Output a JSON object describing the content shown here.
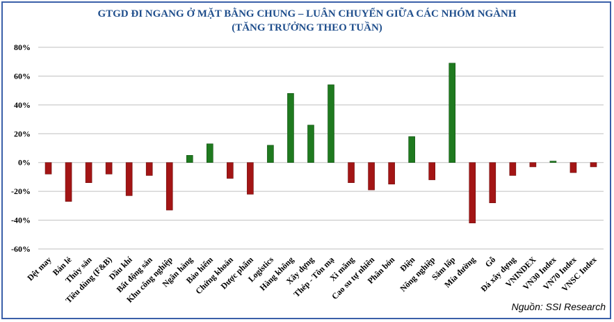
{
  "colors": {
    "positive": "#1f7a1f",
    "negative": "#a31515",
    "title": "#1f4e8c",
    "grid": "#bfbfbf"
  },
  "source": "Nguồn: SSI Research",
  "chart_data": {
    "type": "bar",
    "title": "GTGD ĐI NGANG Ở MẶT BẰNG CHUNG – LUÂN CHUYỂN GIỮA CÁC NHÓM NGÀNH",
    "subtitle": "(TĂNG TRƯỞNG THEO TUẦN)",
    "xlabel": "",
    "ylabel": "",
    "ylim": [
      -60,
      80
    ],
    "yticks": [
      80,
      60,
      40,
      20,
      0,
      -20,
      -40,
      -60
    ],
    "ytick_labels": [
      "80%",
      "60%",
      "40%",
      "20%",
      "0%",
      "-20%",
      "-40%",
      "-60%"
    ],
    "grid": true,
    "legend": "none",
    "categories": [
      "Dệt may",
      "Bán lẻ",
      "Thủy sản",
      "Tiêu dùng (F&B)",
      "Dầu khí",
      "Bất động sản",
      "Khu công nghiệp",
      "Ngân hàng",
      "Bảo hiểm",
      "Chứng khoán",
      "Dược phẩm",
      "Logistics",
      "Hàng không",
      "Xây dựng",
      "Thép - Tôn mạ",
      "Xi măng",
      "Cao su tự nhiên",
      "Phân bón",
      "Điện",
      "Nông nghiệp",
      "Săm lốp",
      "Mía đường",
      "Gỗ",
      "Đá xây dựng",
      "VNINDEX",
      "VN30 Index",
      "VN70 Index",
      "VNSC Index"
    ],
    "values": [
      -8,
      -27,
      -14,
      -8,
      -23,
      -9,
      -33,
      5,
      13,
      -11,
      -22,
      12,
      48,
      26,
      54,
      -14,
      -19,
      -15,
      18,
      -12,
      69,
      -42,
      -28,
      -9,
      -3,
      1,
      -7,
      -3
    ]
  }
}
